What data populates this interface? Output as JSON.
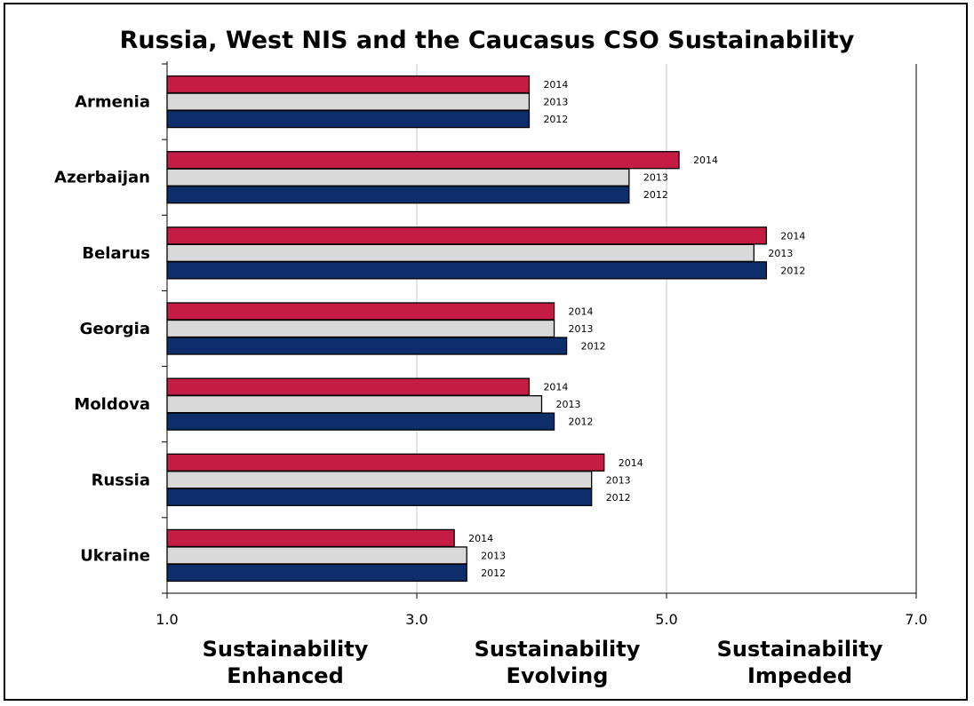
{
  "chart_data": {
    "type": "bar",
    "orientation": "horizontal",
    "title": "Russia, West NIS and the Caucasus CSO Sustainability",
    "categories": [
      "Armenia",
      "Azerbaijan",
      "Belarus",
      "Georgia",
      "Moldova",
      "Russia",
      "Ukraine"
    ],
    "series": [
      {
        "name": "2014",
        "color": "#c41c44",
        "values": [
          3.9,
          5.1,
          5.8,
          4.1,
          3.9,
          4.5,
          3.3
        ]
      },
      {
        "name": "2013",
        "color": "#d9d9d9",
        "values": [
          3.9,
          4.7,
          5.7,
          4.1,
          4.0,
          4.4,
          3.4
        ]
      },
      {
        "name": "2012",
        "color": "#0d2d6b",
        "values": [
          3.9,
          4.7,
          5.8,
          4.2,
          4.1,
          4.4,
          3.4
        ]
      }
    ],
    "x_ticks": [
      "1.0",
      "3.0",
      "5.0",
      "7.0"
    ],
    "xlim": [
      1.0,
      7.0
    ],
    "grid": "vertical",
    "zones": [
      {
        "line1": "Sustainability",
        "line2": "Enhanced"
      },
      {
        "line1": "Sustainability",
        "line2": "Evolving"
      },
      {
        "line1": "Sustainability",
        "line2": "Impeded"
      }
    ]
  }
}
